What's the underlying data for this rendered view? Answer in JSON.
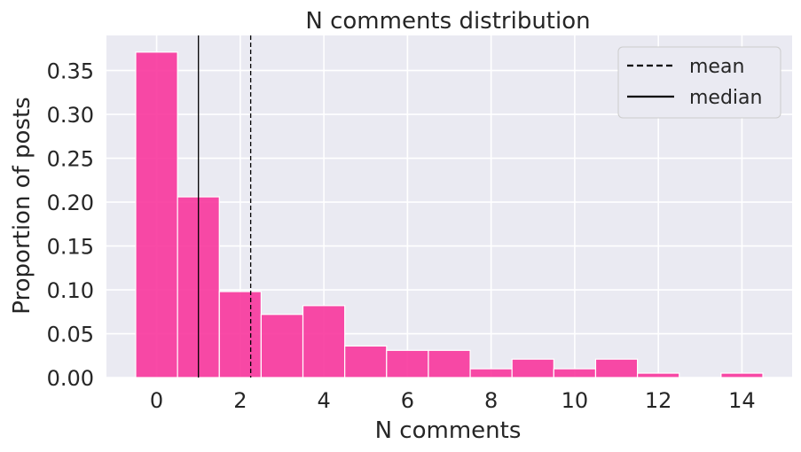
{
  "chart_data": {
    "type": "bar",
    "title": "N comments distribution",
    "xlabel": "N comments",
    "ylabel": "Proportion of posts",
    "x": [
      0,
      1,
      2,
      3,
      4,
      5,
      6,
      7,
      8,
      9,
      10,
      11,
      12,
      13,
      14
    ],
    "values": [
      0.371,
      0.206,
      0.098,
      0.072,
      0.082,
      0.036,
      0.031,
      0.031,
      0.01,
      0.021,
      0.01,
      0.021,
      0.005,
      0.0,
      0.005
    ],
    "xlim": [
      -1.2,
      15.2
    ],
    "ylim": [
      0,
      0.39
    ],
    "xticks": [
      0,
      2,
      4,
      6,
      8,
      10,
      12,
      14
    ],
    "xtick_labels": [
      "0",
      "2",
      "4",
      "6",
      "8",
      "10",
      "12",
      "14"
    ],
    "yticks": [
      0.0,
      0.05,
      0.1,
      0.15,
      0.2,
      0.25,
      0.3,
      0.35
    ],
    "ytick_labels": [
      "0.00",
      "0.05",
      "0.10",
      "0.15",
      "0.20",
      "0.25",
      "0.30",
      "0.35"
    ],
    "mean": 2.25,
    "median": 1.0,
    "legend": [
      {
        "label": "mean",
        "style": "dashed"
      },
      {
        "label": "median",
        "style": "solid"
      }
    ],
    "legend_position": "top-right",
    "grid": true,
    "colors": {
      "bar": "#f8369c",
      "bar_edge": "#ffffff",
      "plot_bg": "#eaeaf2",
      "grid": "#ffffff",
      "line": "#000000"
    }
  }
}
